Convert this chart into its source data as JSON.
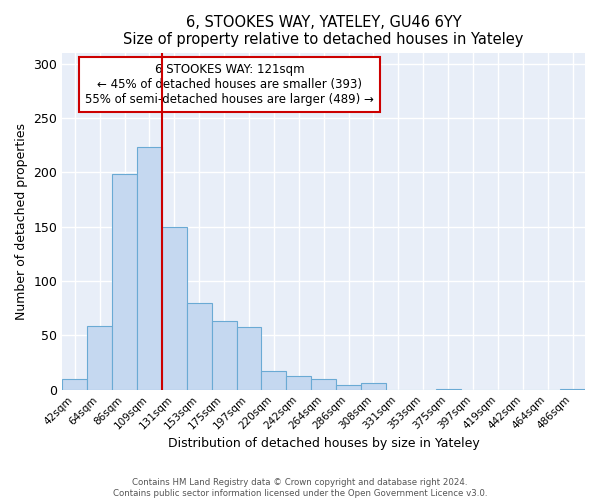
{
  "title": "6, STOOKES WAY, YATELEY, GU46 6YY",
  "subtitle": "Size of property relative to detached houses in Yateley",
  "xlabel": "Distribution of detached houses by size in Yateley",
  "ylabel": "Number of detached properties",
  "bar_labels": [
    "42sqm",
    "64sqm",
    "86sqm",
    "109sqm",
    "131sqm",
    "153sqm",
    "175sqm",
    "197sqm",
    "220sqm",
    "242sqm",
    "264sqm",
    "286sqm",
    "308sqm",
    "331sqm",
    "353sqm",
    "375sqm",
    "397sqm",
    "419sqm",
    "442sqm",
    "464sqm",
    "486sqm"
  ],
  "bar_values": [
    10,
    59,
    198,
    223,
    150,
    80,
    63,
    58,
    17,
    13,
    10,
    4,
    6,
    0,
    0,
    1,
    0,
    0,
    0,
    0,
    1
  ],
  "bar_color": "#c5d8f0",
  "bar_edge_color": "#6aaad4",
  "ylim": [
    0,
    310
  ],
  "yticks": [
    0,
    50,
    100,
    150,
    200,
    250,
    300
  ],
  "annotation_box_text": "6 STOOKES WAY: 121sqm\n← 45% of detached houses are smaller (393)\n55% of semi-detached houses are larger (489) →",
  "annotation_box_color": "#ffffff",
  "annotation_box_edge_color": "#cc0000",
  "vline_x": 3.5,
  "vline_color": "#cc0000",
  "footer_line1": "Contains HM Land Registry data © Crown copyright and database right 2024.",
  "footer_line2": "Contains public sector information licensed under the Open Government Licence v3.0.",
  "background_color": "#ffffff",
  "plot_bg_color": "#e8eef8"
}
